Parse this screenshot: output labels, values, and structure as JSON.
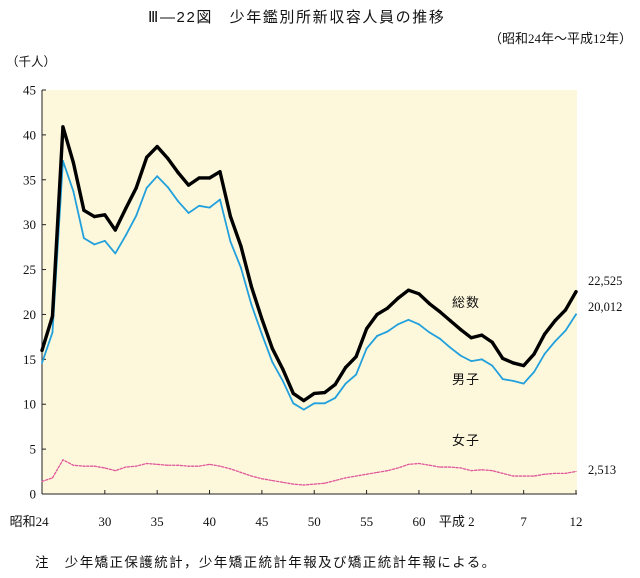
{
  "chart_data": {
    "type": "line",
    "title": "Ⅲ—22図　少年鑑別所新収容人員の推移",
    "subtitle": "（昭和24年～平成12年）",
    "ylabel": "（千人）",
    "ylim": [
      0,
      45
    ],
    "y_ticks": [
      0,
      5,
      10,
      15,
      20,
      25,
      30,
      35,
      40,
      45
    ],
    "grid": false,
    "categories": [
      "昭和24",
      "",
      "",
      "",
      "",
      "",
      "30",
      "",
      "",
      "",
      "",
      "35",
      "",
      "",
      "",
      "",
      "40",
      "",
      "",
      "",
      "",
      "45",
      "",
      "",
      "",
      "",
      "50",
      "",
      "",
      "",
      "",
      "55",
      "",
      "",
      "",
      "",
      "60",
      "",
      "",
      "",
      "",
      "平成 2",
      "",
      "",
      "",
      "",
      "7",
      "",
      "",
      "",
      "",
      "12"
    ],
    "series": [
      {
        "name": "総数",
        "color": "#000000",
        "end_label": "22,525",
        "values": [
          16.0,
          19.8,
          40.9,
          36.9,
          31.6,
          30.9,
          31.1,
          29.4,
          31.8,
          34.1,
          37.5,
          38.7,
          37.4,
          35.8,
          34.4,
          35.2,
          35.2,
          35.9,
          30.9,
          27.6,
          23.1,
          19.5,
          16.2,
          13.9,
          11.2,
          10.4,
          11.2,
          11.3,
          12.2,
          14.1,
          15.3,
          18.4,
          20.0,
          20.7,
          21.8,
          22.7,
          22.3,
          21.2,
          20.3,
          19.3,
          18.3,
          17.4,
          17.7,
          16.9,
          15.1,
          14.6,
          14.3,
          15.6,
          17.8,
          19.3,
          20.5,
          22.525
        ]
      },
      {
        "name": "男子",
        "color": "#22a0dc",
        "end_label": "20,012",
        "values": [
          14.6,
          18.0,
          37.1,
          33.7,
          28.5,
          27.8,
          28.2,
          26.8,
          28.8,
          31.0,
          34.1,
          35.4,
          34.2,
          32.6,
          31.3,
          32.1,
          31.9,
          32.8,
          28.1,
          25.2,
          21.1,
          17.8,
          14.7,
          12.6,
          10.1,
          9.4,
          10.1,
          10.1,
          10.7,
          12.3,
          13.3,
          16.2,
          17.6,
          18.1,
          18.9,
          19.4,
          18.9,
          18.0,
          17.3,
          16.3,
          15.4,
          14.8,
          15.0,
          14.3,
          12.8,
          12.6,
          12.3,
          13.6,
          15.6,
          17.0,
          18.2,
          20.012
        ]
      },
      {
        "name": "女子",
        "color": "#e0579a",
        "end_label": "2,513",
        "values": [
          1.4,
          1.8,
          3.8,
          3.2,
          3.1,
          3.1,
          2.9,
          2.6,
          3.0,
          3.1,
          3.4,
          3.3,
          3.2,
          3.2,
          3.1,
          3.1,
          3.3,
          3.1,
          2.8,
          2.4,
          2.0,
          1.7,
          1.5,
          1.3,
          1.1,
          1.0,
          1.1,
          1.2,
          1.5,
          1.8,
          2.0,
          2.2,
          2.4,
          2.6,
          2.9,
          3.3,
          3.4,
          3.2,
          3.0,
          3.0,
          2.9,
          2.6,
          2.7,
          2.6,
          2.3,
          2.0,
          2.0,
          2.0,
          2.2,
          2.3,
          2.3,
          2.513
        ]
      }
    ],
    "note": "注　少年矯正保護統計，少年矯正統計年報及び矯正統計年報による。"
  }
}
